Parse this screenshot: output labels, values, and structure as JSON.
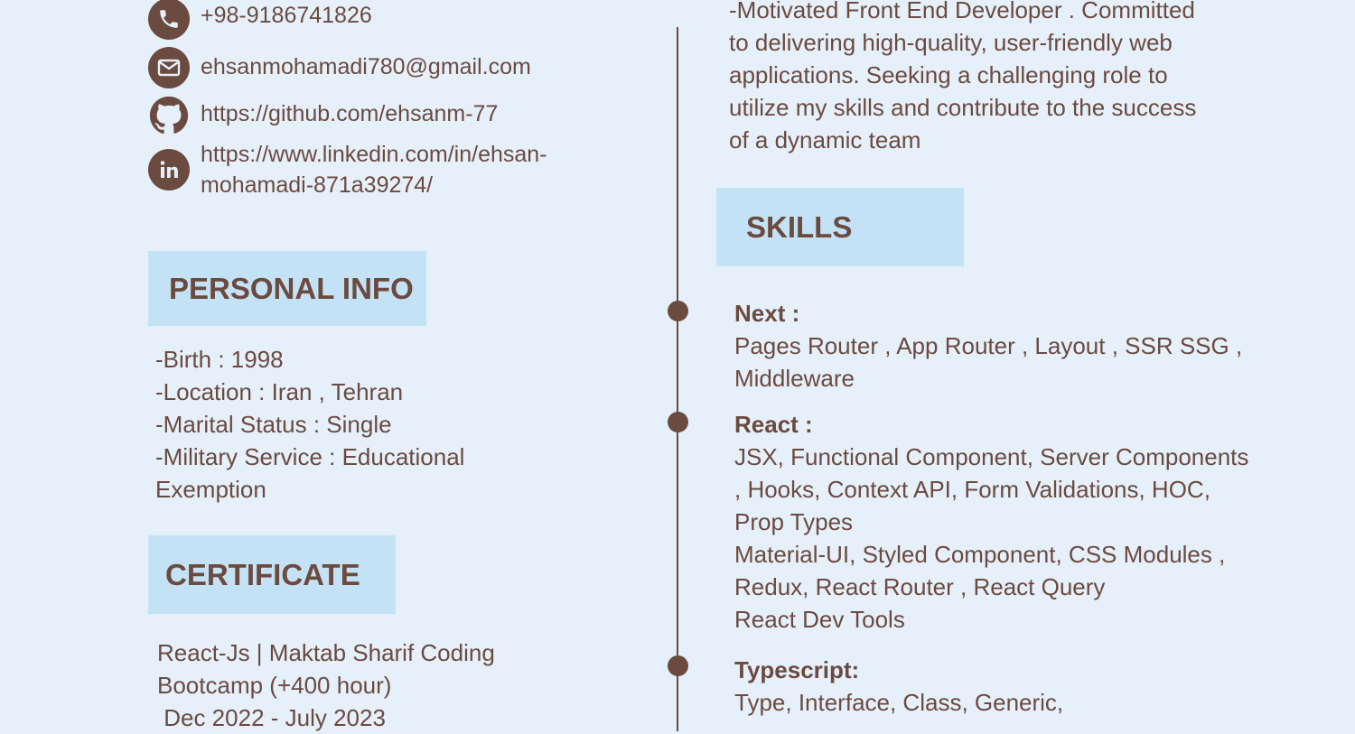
{
  "contact": {
    "phone": "+98-9186741826",
    "email": "ehsanmohamadi780@gmail.com",
    "github": "https://github.com/ehsanm-77",
    "linkedin_line1": "https://www.linkedin.com/in/ehsan-",
    "linkedin_line2": "mohamadi-871a39274/",
    "icons": [
      "phone-icon",
      "mail-icon",
      "github-icon",
      "linkedin-icon"
    ]
  },
  "personal_info": {
    "title": "PERSONAL INFO",
    "lines": [
      "-Birth : 1998",
      "-Location : Iran , Tehran",
      "-Marital Status : Single",
      "-Military Service : Educational",
      "Exemption"
    ]
  },
  "certificate": {
    "title": "CERTIFICATE",
    "lines": [
      "React-Js | Maktab Sharif Coding",
      "Bootcamp (+400 hour)",
      " Dec 2022 - July 2023"
    ]
  },
  "summary": {
    "lines": [
      "-Motivated Front End Developer . Committed",
      "to delivering high-quality, user-friendly web",
      "applications. Seeking a challenging role to",
      "utilize my skills and contribute to the success",
      "of a dynamic team"
    ]
  },
  "skills": {
    "title": "SKILLS",
    "items": [
      {
        "name": "Next :",
        "lines": [
          "Pages Router , App Router , Layout , SSR SSG ,",
          "Middleware"
        ]
      },
      {
        "name": "React :",
        "lines": [
          "JSX, Functional Component, Server Components",
          ", Hooks, Context API, Form Validations, HOC,",
          "Prop Types",
          "Material-UI, Styled Component, CSS Modules ,",
          "Redux, React Router , React Query",
          "React Dev Tools"
        ]
      },
      {
        "name": "Typescript:",
        "lines": [
          "Type, Interface, Class, Generic,"
        ]
      }
    ]
  },
  "colors": {
    "background": "#e6f0fa",
    "accent_box": "#c4e2f5",
    "text": "#6b4a3f"
  }
}
